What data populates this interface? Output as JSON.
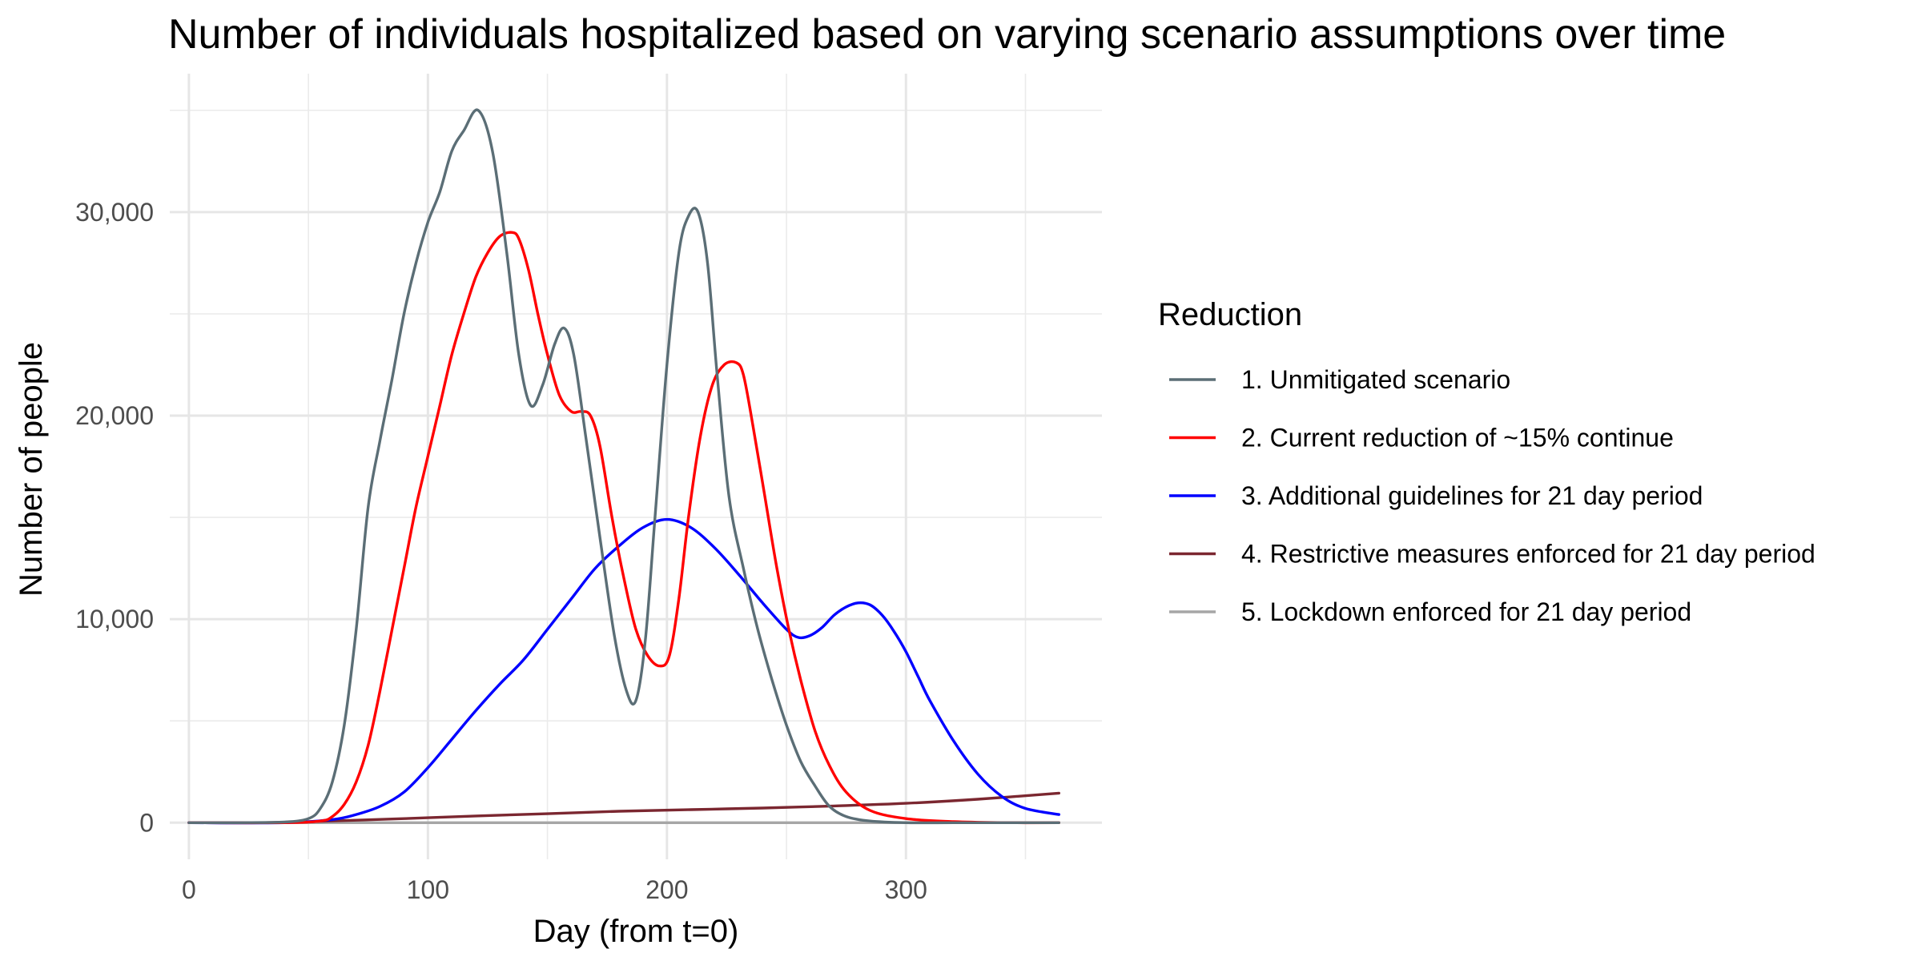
{
  "chart_data": {
    "type": "line",
    "title": "Number of individuals hospitalized based on varying scenario assumptions over time",
    "xlabel": "Day (from t=0)",
    "ylabel": "Number of people",
    "xlim": [
      -8,
      382
    ],
    "ylim": [
      -1800,
      36800
    ],
    "x_ticks": [
      {
        "value": 0,
        "label": "0"
      },
      {
        "value": 100,
        "label": "100"
      },
      {
        "value": 200,
        "label": "200"
      },
      {
        "value": 300,
        "label": "300"
      }
    ],
    "x_minor": [
      50,
      150,
      250,
      350
    ],
    "y_ticks": [
      {
        "value": 0,
        "label": "0"
      },
      {
        "value": 10000,
        "label": "10,000"
      },
      {
        "value": 20000,
        "label": "20,000"
      },
      {
        "value": 30000,
        "label": "30,000"
      }
    ],
    "y_minor": [
      5000,
      15000,
      25000,
      35000
    ],
    "grid": true,
    "legend": {
      "title": "Reduction",
      "position": "right"
    },
    "series": [
      {
        "name": "1. Unmitigated scenario",
        "color": "#5b6e76",
        "x": [
          0,
          20,
          40,
          50,
          55,
          60,
          65,
          70,
          75,
          80,
          85,
          90,
          95,
          100,
          105,
          110,
          115,
          121,
          127,
          133,
          138,
          143,
          148,
          153,
          157,
          161,
          166,
          172,
          178,
          183,
          187,
          191,
          195,
          200,
          205,
          209,
          213,
          217,
          221,
          226,
          232,
          238,
          244,
          250,
          256,
          262,
          268,
          275,
          285,
          300,
          320,
          340,
          364
        ],
        "y": [
          0,
          0,
          30,
          200,
          700,
          2000,
          4800,
          9500,
          15500,
          18800,
          21800,
          25000,
          27500,
          29500,
          31000,
          33000,
          34000,
          35000,
          33000,
          28000,
          23000,
          20500,
          21500,
          23500,
          24300,
          23000,
          19000,
          14000,
          9200,
          6500,
          6000,
          9000,
          15000,
          22500,
          28000,
          29800,
          30000,
          27500,
          22000,
          16000,
          12500,
          9500,
          7000,
          4800,
          3000,
          1800,
          800,
          300,
          80,
          0,
          0,
          0,
          0
        ]
      },
      {
        "name": "2. Current reduction of ~15% continue",
        "color": "#ff0000",
        "x": [
          0,
          40,
          55,
          60,
          65,
          70,
          75,
          80,
          85,
          90,
          95,
          100,
          105,
          110,
          115,
          120,
          125,
          130,
          135,
          138,
          142,
          146,
          150,
          155,
          160,
          164,
          168,
          172,
          177,
          182,
          187,
          192,
          197,
          201,
          205,
          209,
          214,
          219,
          224,
          229,
          232,
          236,
          241,
          246,
          251,
          256,
          262,
          268,
          275,
          285,
          300,
          320,
          340,
          364
        ],
        "y": [
          0,
          0,
          80,
          300,
          900,
          2000,
          3800,
          6500,
          9500,
          12500,
          15500,
          18000,
          20500,
          23000,
          25000,
          26800,
          28000,
          28800,
          29000,
          28700,
          27200,
          25000,
          23000,
          21000,
          20200,
          20200,
          20000,
          18500,
          15000,
          12000,
          9500,
          8200,
          7700,
          8200,
          11000,
          15000,
          19000,
          21500,
          22500,
          22600,
          22000,
          19500,
          16000,
          12500,
          9500,
          7000,
          4500,
          2800,
          1500,
          600,
          200,
          50,
          0,
          0
        ]
      },
      {
        "name": "3. Additional guidelines for 21 day period",
        "color": "#0000ff",
        "x": [
          0,
          40,
          60,
          70,
          80,
          90,
          100,
          110,
          120,
          130,
          140,
          150,
          160,
          170,
          180,
          190,
          200,
          210,
          220,
          230,
          240,
          250,
          255,
          260,
          265,
          270,
          275,
          280,
          285,
          290,
          295,
          300,
          305,
          310,
          320,
          330,
          340,
          350,
          364
        ],
        "y": [
          0,
          0,
          150,
          400,
          800,
          1500,
          2700,
          4100,
          5500,
          6800,
          8000,
          9500,
          11000,
          12500,
          13600,
          14500,
          14900,
          14500,
          13500,
          12200,
          10800,
          9500,
          9100,
          9200,
          9600,
          10200,
          10600,
          10800,
          10700,
          10200,
          9400,
          8400,
          7200,
          6000,
          4000,
          2400,
          1300,
          700,
          400
        ]
      },
      {
        "name": "4. Restrictive measures enforced for 21 day period",
        "color": "#7b2730",
        "x": [
          0,
          30,
          60,
          90,
          120,
          150,
          180,
          210,
          240,
          270,
          300,
          330,
          364
        ],
        "y": [
          0,
          0,
          80,
          200,
          330,
          440,
          560,
          640,
          720,
          820,
          950,
          1150,
          1450
        ]
      },
      {
        "name": "5. Lockdown enforced for 21 day period",
        "color": "#a6a6a6",
        "x": [
          0,
          100,
          200,
          300,
          364
        ],
        "y": [
          0,
          0,
          0,
          0,
          0
        ]
      }
    ]
  }
}
